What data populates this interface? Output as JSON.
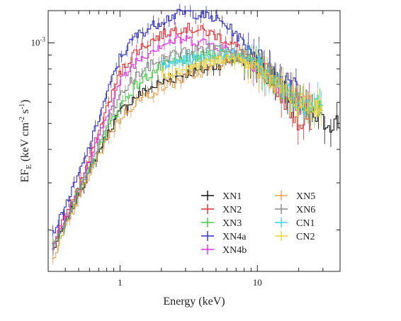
{
  "chart_data": {
    "type": "line",
    "title": "",
    "xlabel": "Energy (keV)",
    "ylabel_main": "EF",
    "ylabel_sub": "E",
    "ylabel_units": " (keV cm",
    "ylabel_exp1": "-2",
    "ylabel_mid": " s",
    "ylabel_exp2": "-1",
    "ylabel_close": ")",
    "xscale": "log",
    "yscale": "log",
    "xlim": [
      0.3,
      40
    ],
    "ylim": [
      0.00014,
      0.00132
    ],
    "x_ticks": [
      {
        "value": 1,
        "label": "1"
      },
      {
        "value": 10,
        "label": "10"
      }
    ],
    "y_ticks": [
      {
        "value": 0.001,
        "base": "10",
        "exp": "-3"
      }
    ],
    "legend_position": "bottom-right",
    "series": [
      {
        "name": "XN1",
        "color": "#111111",
        "x": [
          0.32,
          0.4,
          0.5,
          0.6,
          0.7,
          0.8,
          1,
          1.3,
          1.7,
          2,
          2.5,
          3,
          4,
          5,
          6,
          7,
          8,
          10,
          12,
          15,
          20,
          30,
          40
        ],
        "y": [
          0.000165,
          0.00021,
          0.00027,
          0.00033,
          0.00039,
          0.00045,
          0.00055,
          0.00063,
          0.00068,
          0.00071,
          0.00074,
          0.00077,
          0.00079,
          0.00082,
          0.00085,
          0.00087,
          0.00086,
          0.00082,
          0.00077,
          0.00068,
          0.00058,
          0.000505,
          0.000505
        ]
      },
      {
        "name": "XN2",
        "color": "#e03030",
        "x": [
          0.32,
          0.4,
          0.5,
          0.6,
          0.7,
          0.8,
          1,
          1.3,
          1.7,
          2,
          2.5,
          3,
          4,
          5,
          6,
          7,
          8,
          10,
          12,
          15,
          20,
          25
        ],
        "y": [
          0.000175,
          0.000225,
          0.00029,
          0.00037,
          0.00046,
          0.00057,
          0.00077,
          0.00093,
          0.00102,
          0.00107,
          0.00112,
          0.00114,
          0.00111,
          0.00107,
          0.00102,
          0.00097,
          0.00092,
          0.00084,
          0.00076,
          0.00065,
          0.00051,
          0.000485
        ]
      },
      {
        "name": "XN3",
        "color": "#40c840",
        "x": [
          0.32,
          0.4,
          0.5,
          0.6,
          0.7,
          0.8,
          1,
          1.3,
          1.7,
          2,
          2.5,
          3,
          4,
          5,
          6,
          7,
          8,
          10,
          12,
          15,
          20,
          30
        ],
        "y": [
          0.00017,
          0.000215,
          0.000275,
          0.00034,
          0.0004,
          0.00047,
          0.00058,
          0.00069,
          0.00077,
          0.00081,
          0.00085,
          0.00087,
          0.00089,
          0.00091,
          0.00092,
          0.00091,
          0.00089,
          0.00083,
          0.00077,
          0.00068,
          0.00061,
          0.00061
        ]
      },
      {
        "name": "XN4a",
        "color": "#3030c0",
        "x": [
          0.32,
          0.4,
          0.5,
          0.6,
          0.7,
          0.8,
          1,
          1.3,
          1.7,
          2,
          2.5,
          3,
          3.5,
          4,
          5,
          6,
          7,
          8,
          10,
          12,
          15,
          20
        ],
        "y": [
          0.00019,
          0.000245,
          0.00032,
          0.00041,
          0.00052,
          0.00064,
          0.00088,
          0.00106,
          0.00115,
          0.00121,
          0.00127,
          0.0013,
          0.00129,
          0.00127,
          0.00123,
          0.00116,
          0.00108,
          0.001,
          0.0009,
          0.00082,
          0.00074,
          0.00074
        ]
      },
      {
        "name": "XN4b",
        "color": "#e030e0",
        "x": [
          0.32,
          0.4,
          0.5,
          0.6,
          0.7,
          0.8,
          1,
          1.3,
          1.7,
          2,
          2.5,
          3,
          4,
          5,
          6,
          7,
          8,
          10,
          12,
          15,
          20,
          25
        ],
        "y": [
          0.00017,
          0.00022,
          0.00028,
          0.00036,
          0.00044,
          0.00053,
          0.00071,
          0.00085,
          0.00094,
          0.00099,
          0.00102,
          0.00103,
          0.00101,
          0.00098,
          0.00095,
          0.00091,
          0.00087,
          0.0008,
          0.00074,
          0.00066,
          0.00059,
          0.00059
        ]
      },
      {
        "name": "XN5",
        "color": "#e8a050",
        "x": [
          0.32,
          0.4,
          0.5,
          0.6,
          0.7,
          0.8,
          1,
          1.3,
          1.7,
          2,
          2.5,
          3,
          4,
          5,
          6,
          7,
          8,
          10,
          12,
          15,
          20,
          25
        ],
        "y": [
          0.000155,
          0.0002,
          0.00026,
          0.00032,
          0.00038,
          0.00044,
          0.00052,
          0.0006,
          0.00065,
          0.00068,
          0.00071,
          0.00074,
          0.00078,
          0.00082,
          0.00086,
          0.00088,
          0.00087,
          0.00082,
          0.00076,
          0.00068,
          0.00062,
          0.00062
        ]
      },
      {
        "name": "XN6",
        "color": "#888888",
        "x": [
          0.32,
          0.4,
          0.5,
          0.6,
          0.7,
          0.8,
          1,
          1.3,
          1.7,
          2,
          2.5,
          3,
          4,
          5,
          6,
          7,
          8,
          10,
          12,
          15,
          20,
          25
        ],
        "y": [
          0.00017,
          0.000215,
          0.000275,
          0.00034,
          0.00041,
          0.00049,
          0.00063,
          0.00075,
          0.00083,
          0.00087,
          0.00091,
          0.00093,
          0.00095,
          0.00096,
          0.00096,
          0.00094,
          0.00091,
          0.00085,
          0.00078,
          0.00068,
          0.00057,
          0.00057
        ]
      },
      {
        "name": "CN1",
        "color": "#40d0e0",
        "x": [
          2,
          2.5,
          3,
          4,
          5,
          6,
          7,
          8,
          10,
          12,
          15,
          20,
          30
        ],
        "y": [
          0.00081,
          0.00084,
          0.00086,
          0.00088,
          0.0009,
          0.00091,
          0.0009,
          0.00088,
          0.00083,
          0.00077,
          0.00069,
          0.00059,
          0.00059
        ]
      },
      {
        "name": "CN2",
        "color": "#e8d040",
        "x": [
          2,
          2.5,
          3,
          4,
          5,
          6,
          7,
          8,
          10,
          12,
          15,
          20,
          30
        ],
        "y": [
          0.00076,
          0.00078,
          0.0008,
          0.00083,
          0.00086,
          0.00088,
          0.00087,
          0.00085,
          0.0008,
          0.00075,
          0.00068,
          0.00058,
          0.00058
        ]
      }
    ]
  }
}
